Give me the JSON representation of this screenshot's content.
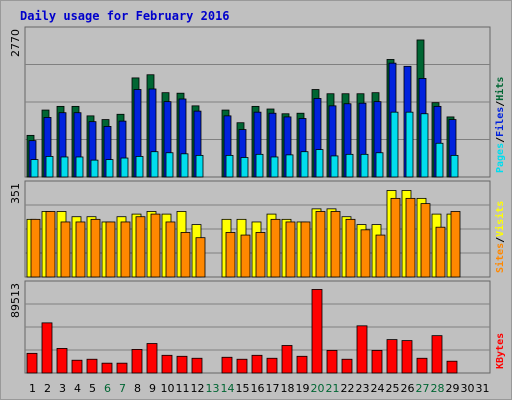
{
  "chart_data": {
    "type": "bar",
    "title": "Daily usage for February 2016",
    "categories": [
      "1",
      "2",
      "3",
      "4",
      "5",
      "6",
      "7",
      "8",
      "9",
      "10",
      "11",
      "12",
      "13",
      "14",
      "15",
      "16",
      "17",
      "18",
      "19",
      "20",
      "21",
      "22",
      "23",
      "24",
      "25",
      "26",
      "27",
      "28",
      "29",
      "30",
      "31"
    ],
    "weekend_days": [
      "6",
      "7",
      "13",
      "14",
      "20",
      "21",
      "27",
      "28"
    ],
    "colors": {
      "title": "#0000cc",
      "frame": "#999999",
      "plot_bg": "#c0c0c0",
      "grid": "#808080",
      "hits": "#006633",
      "files": "#0022dd",
      "pages": "#00ddee",
      "visits": "#ffff00",
      "sites": "#ff8800",
      "kbytes": "#ff0000",
      "weekend_tick": "#006633",
      "weekday_tick": "#000000"
    },
    "panels": [
      {
        "name": "hits-files-pages",
        "ymax": 2770,
        "ymax_label": "2770",
        "legend": [
          {
            "text": "Hits",
            "color": "#006633"
          },
          {
            "text": "/",
            "color": "#000000"
          },
          {
            "text": "Files",
            "color": "#0022dd"
          },
          {
            "text": "/",
            "color": "#000000"
          },
          {
            "text": "Pages",
            "color": "#00ddee"
          }
        ],
        "series": [
          {
            "name": "Hits",
            "color": "#006633",
            "values": [
              790,
              1270,
              1340,
              1340,
              1160,
              1090,
              1190,
              1880,
              1940,
              1600,
              1590,
              1350,
              0,
              1270,
              1030,
              1340,
              1290,
              1200,
              1210,
              1660,
              1580,
              1580,
              1580,
              1600,
              2230,
              0,
              2600,
              1410,
              1140,
              0,
              0
            ]
          },
          {
            "name": "Files",
            "color": "#0022dd",
            "values": [
              690,
              1130,
              1220,
              1220,
              1050,
              960,
              1060,
              1660,
              1670,
              1430,
              1480,
              1250,
              0,
              1160,
              900,
              1230,
              1210,
              1140,
              1110,
              1490,
              1350,
              1390,
              1400,
              1430,
              2160,
              2100,
              1870,
              1340,
              1090,
              0,
              0
            ]
          },
          {
            "name": "Pages",
            "color": "#00ddee",
            "values": [
              330,
              390,
              380,
              380,
              320,
              330,
              360,
              390,
              480,
              460,
              440,
              410,
              0,
              410,
              370,
              430,
              380,
              420,
              480,
              520,
              400,
              430,
              430,
              460,
              1230,
              1230,
              1200,
              640,
              410,
              0,
              0
            ]
          }
        ]
      },
      {
        "name": "visits-sites",
        "ymax": 351,
        "ymax_label": "351",
        "legend": [
          {
            "text": "Visits",
            "color": "#ffff00"
          },
          {
            "text": "/",
            "color": "#000000"
          },
          {
            "text": "Sites",
            "color": "#ff8800"
          }
        ],
        "series": [
          {
            "name": "Visits",
            "color": "#ffff00",
            "values": [
              220,
              250,
              250,
              230,
              230,
              210,
              230,
              240,
              250,
              240,
              250,
              200,
              0,
              220,
              220,
              210,
              240,
              220,
              210,
              260,
              260,
              230,
              200,
              200,
              330,
              330,
              300,
              240,
              240,
              0,
              0
            ]
          },
          {
            "name": "Sites",
            "color": "#ff8800",
            "values": [
              220,
              250,
              210,
              210,
              220,
              210,
              210,
              230,
              240,
              210,
              170,
              150,
              0,
              170,
              160,
              170,
              220,
              210,
              210,
              250,
              250,
              220,
              180,
              160,
              300,
              300,
              280,
              190,
              250,
              0,
              0
            ]
          }
        ]
      },
      {
        "name": "kbytes",
        "ymax": 89513,
        "ymax_label": "89513",
        "legend": [
          {
            "text": "KBytes",
            "color": "#ff0000"
          }
        ],
        "series": [
          {
            "name": "KBytes",
            "color": "#ff0000",
            "values": [
              20000,
              51000,
              25000,
              13000,
              14000,
              10000,
              10000,
              24000,
              30000,
              18000,
              17000,
              15000,
              0,
              16000,
              14000,
              18000,
              15000,
              28000,
              17000,
              85000,
              23000,
              14000,
              48000,
              23000,
              34000,
              33000,
              15000,
              38000,
              12000,
              0,
              0
            ]
          }
        ]
      }
    ]
  }
}
